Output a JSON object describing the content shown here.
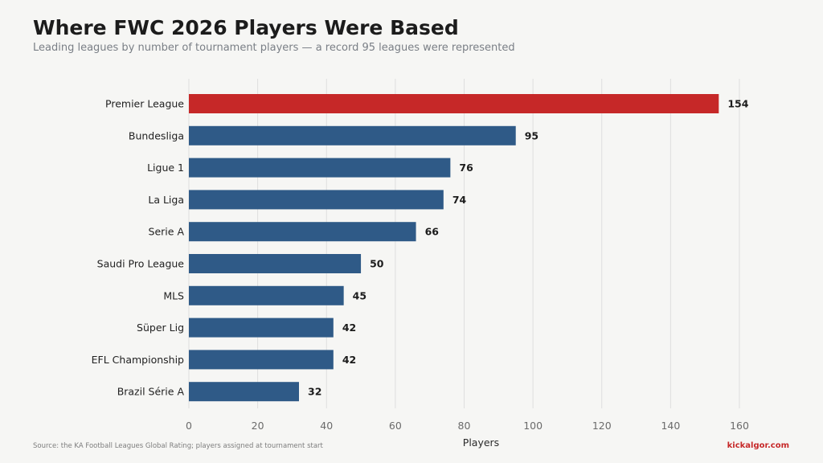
{
  "header": {
    "title": "Where FWC 2026 Players Were Based",
    "subtitle": "Leading leagues by number of tournament players — a record 95 leagues were represented"
  },
  "footer": {
    "source": "Source: the KA Football Leagues Global Rating; players assigned at tournament start",
    "brand": "kickalgor.com"
  },
  "colors": {
    "highlight": "#c62828",
    "bar": "#2f5a87",
    "grid": "#dedede"
  },
  "chart_data": {
    "type": "bar",
    "orientation": "horizontal",
    "categories": [
      "Premier League",
      "Bundesliga",
      "Ligue 1",
      "La Liga",
      "Serie A",
      "Saudi Pro League",
      "MLS",
      "Süper Lig",
      "EFL Championship",
      "Brazil Série A"
    ],
    "values": [
      154,
      95,
      76,
      74,
      66,
      50,
      45,
      42,
      42,
      32
    ],
    "highlighted": [
      "Premier League"
    ],
    "xlabel": "Players",
    "xlim": [
      0,
      160
    ],
    "xticks": [
      0,
      20,
      40,
      60,
      80,
      100,
      120,
      140,
      160
    ],
    "grid": "vertical",
    "legend": "none"
  }
}
